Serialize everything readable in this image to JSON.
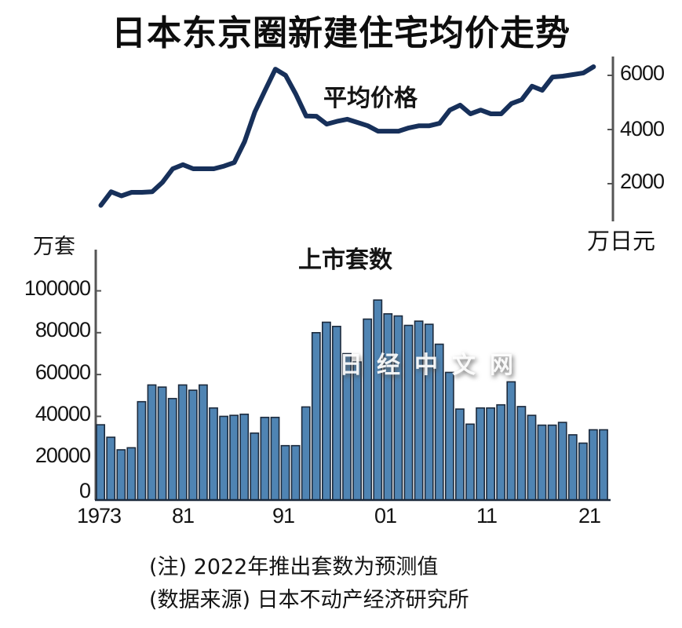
{
  "title": "日本东京圈新建住宅均价走势",
  "line_label": "平均价格",
  "bar_label": "上市套数",
  "price_unit": "万日元",
  "units_unit": "万套",
  "price_ticks": [
    "6000",
    "4000",
    "2000"
  ],
  "units_ticks": [
    "100000",
    "80000",
    "60000",
    "40000",
    "20000",
    "0"
  ],
  "x_ticks": [
    "1973",
    "81",
    "91",
    "01",
    "11",
    "21"
  ],
  "notes": {
    "note1": "(注) 2022年推出套数为预测值",
    "note2": "(数据来源) 日本不动产经济研究所"
  },
  "watermark": "日经中文网",
  "colors": {
    "line": "#17305a",
    "bar_fill": "#4f84b3",
    "bar_edge": "#1c2a3c",
    "axis": "#555555"
  },
  "chart_data": [
    {
      "type": "line",
      "title": "平均价格",
      "ylabel": "万日元",
      "y_axis_position": "right",
      "ylim": [
        0,
        6500
      ],
      "yticks": [
        2000,
        4000,
        6000
      ],
      "x": [
        1973,
        1974,
        1975,
        1976,
        1977,
        1978,
        1979,
        1980,
        1981,
        1982,
        1983,
        1984,
        1985,
        1986,
        1987,
        1988,
        1989,
        1990,
        1991,
        1992,
        1993,
        1994,
        1995,
        1996,
        1997,
        1998,
        1999,
        2000,
        2001,
        2002,
        2003,
        2004,
        2005,
        2006,
        2007,
        2008,
        2009,
        2010,
        2011,
        2012,
        2013,
        2014,
        2015,
        2016,
        2017,
        2018,
        2019,
        2020,
        2021
      ],
      "values": [
        1200,
        1700,
        1550,
        1680,
        1680,
        1700,
        2050,
        2550,
        2700,
        2550,
        2550,
        2550,
        2650,
        2780,
        3550,
        4650,
        5450,
        6230,
        6000,
        5300,
        4500,
        4490,
        4200,
        4300,
        4380,
        4260,
        4140,
        3940,
        3940,
        3940,
        4060,
        4140,
        4140,
        4230,
        4720,
        4900,
        4580,
        4720,
        4580,
        4580,
        4960,
        5100,
        5600,
        5450,
        5940,
        5970,
        6030,
        6090,
        6320
      ]
    },
    {
      "type": "bar",
      "title": "上市套数",
      "ylabel": "万套",
      "xlabel": "",
      "ylim": [
        0,
        110000
      ],
      "yticks": [
        0,
        20000,
        40000,
        60000,
        80000,
        100000
      ],
      "categories": [
        "1973",
        "1974",
        "1975",
        "1976",
        "1977",
        "1978",
        "1979",
        "1980",
        "1981",
        "1982",
        "1983",
        "1984",
        "1985",
        "1986",
        "1987",
        "1988",
        "1989",
        "1990",
        "1991",
        "1992",
        "1993",
        "1994",
        "1995",
        "1996",
        "1997",
        "1998",
        "1999",
        "2000",
        "2001",
        "2002",
        "2003",
        "2004",
        "2005",
        "2006",
        "2007",
        "2008",
        "2009",
        "2010",
        "2011",
        "2012",
        "2013",
        "2014",
        "2015",
        "2016",
        "2017",
        "2018",
        "2019",
        "2020",
        "2021",
        "2022"
      ],
      "values": [
        36000,
        30000,
        24000,
        25000,
        47000,
        55000,
        54000,
        48500,
        55000,
        52500,
        55000,
        44000,
        40000,
        40500,
        41000,
        32000,
        39500,
        39500,
        26000,
        26000,
        44500,
        80000,
        85000,
        83000,
        70000,
        66000,
        86500,
        95600,
        89000,
        88000,
        83500,
        85500,
        84000,
        74500,
        61000,
        43500,
        36300,
        44000,
        44000,
        45500,
        56500,
        44700,
        40500,
        35800,
        35800,
        37100,
        31200,
        27200,
        33600,
        33600
      ],
      "annotations": [
        "2022年推出套数为预测值"
      ],
      "grid": false
    }
  ]
}
